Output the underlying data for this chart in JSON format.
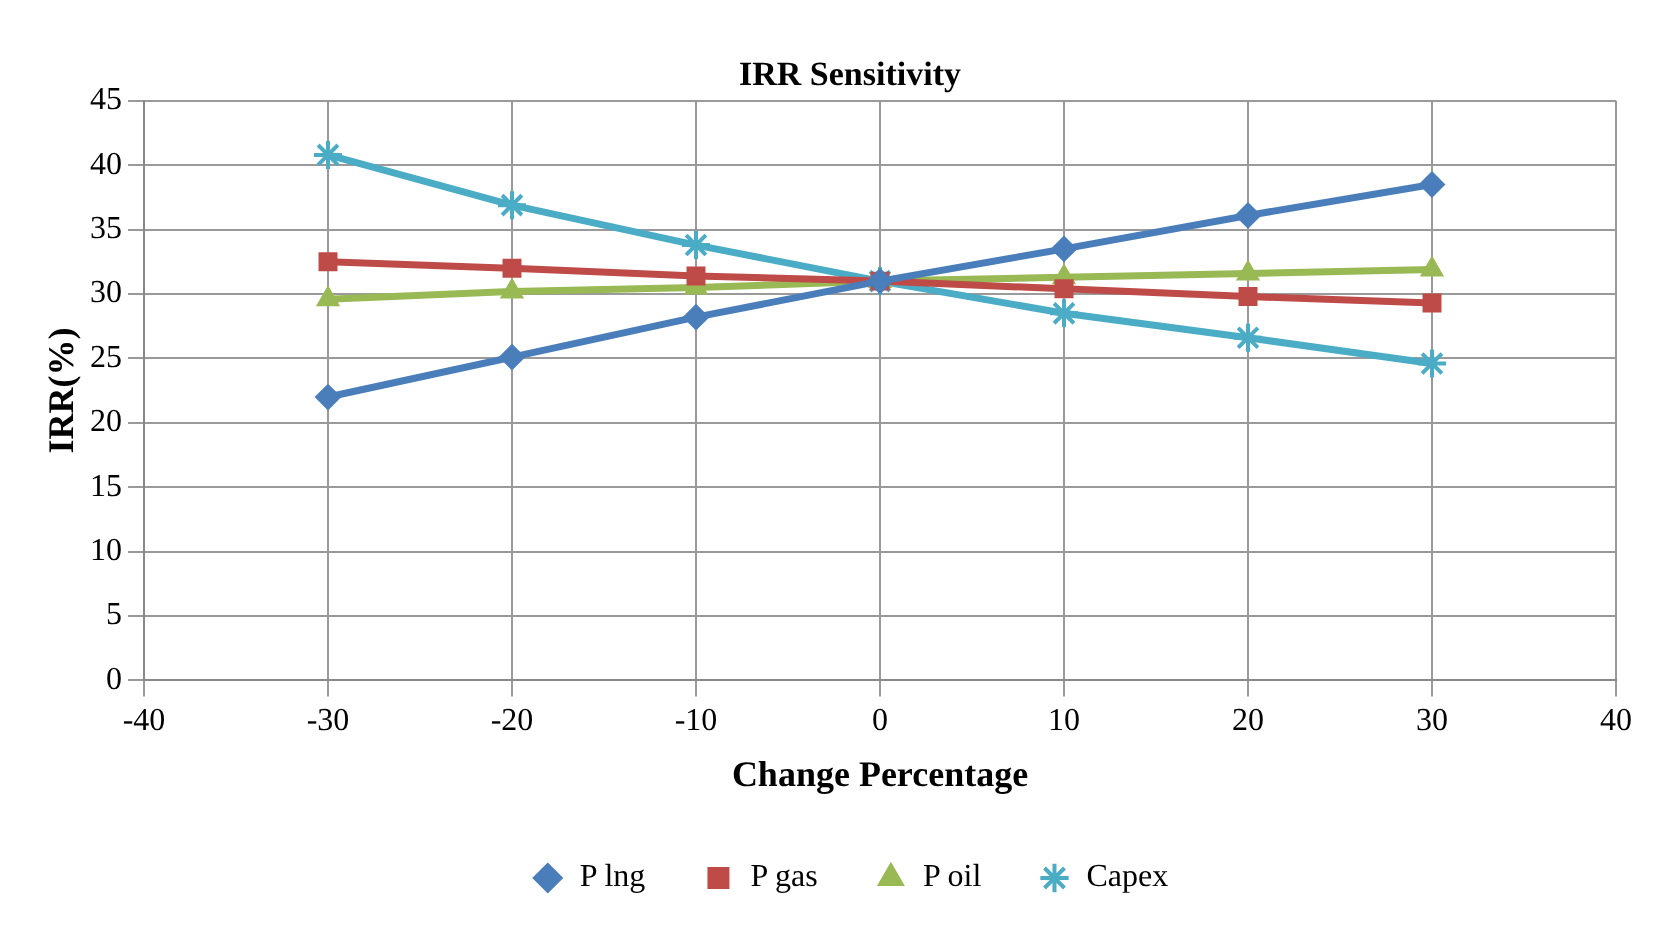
{
  "chart_data": {
    "type": "line",
    "title": "IRR Sensitivity",
    "xlabel": "Change Percentage",
    "ylabel": "IRR(%)",
    "x": [
      -30,
      -20,
      -10,
      0,
      10,
      20,
      30
    ],
    "xlim": [
      -40,
      40
    ],
    "xticks": [
      -40,
      -30,
      -20,
      -10,
      0,
      10,
      20,
      30,
      40
    ],
    "ylim": [
      0,
      45
    ],
    "yticks": [
      0,
      5,
      10,
      15,
      20,
      25,
      30,
      35,
      40,
      45
    ],
    "grid": true,
    "legend": "bottom",
    "line_style": "solid",
    "series": [
      {
        "name": "P lng",
        "color": "#4a7ebb",
        "marker": "diamond",
        "values": [
          22.0,
          25.1,
          28.2,
          31.0,
          33.5,
          36.1,
          38.5
        ]
      },
      {
        "name": "P gas",
        "color": "#be4b48",
        "marker": "square",
        "values": [
          32.5,
          32.0,
          31.4,
          31.0,
          30.4,
          29.8,
          29.3
        ]
      },
      {
        "name": "P oil",
        "color": "#98b954",
        "marker": "triangle",
        "values": [
          29.6,
          30.2,
          30.5,
          31.0,
          31.3,
          31.6,
          31.9
        ]
      },
      {
        "name": "Capex",
        "color": "#4bacc6",
        "marker": "cross",
        "values": [
          40.8,
          36.9,
          33.8,
          31.0,
          28.5,
          26.6,
          24.6
        ]
      }
    ]
  }
}
